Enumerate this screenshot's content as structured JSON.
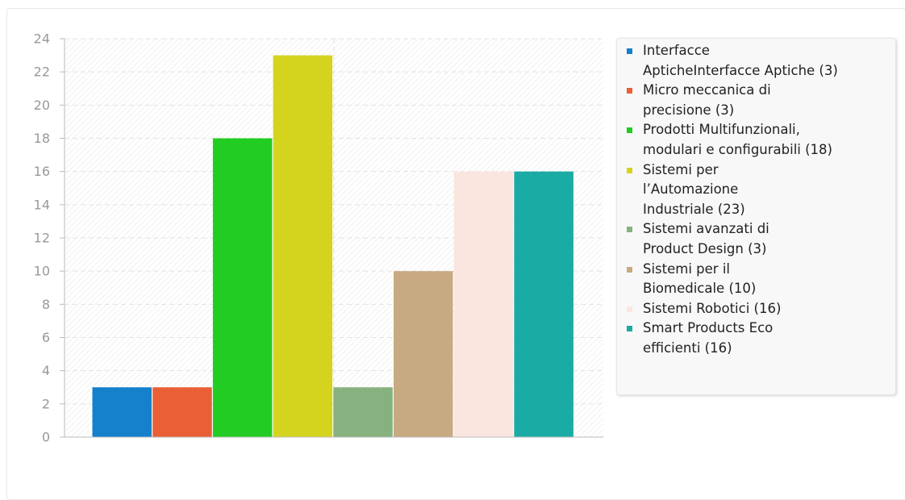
{
  "chart_data": {
    "type": "bar",
    "categories": [
      "Interfacce ApticheInterfacce Aptiche",
      "Micro meccanica di precisione",
      "Prodotti Multifunzionali, modulari e configurabili",
      "Sistemi per l’Automazione Industriale",
      "Sistemi avanzati di Product Design",
      "Sistemi per il Biomedicale",
      "Sistemi Robotici",
      "Smart Products Eco efficienti"
    ],
    "values": [
      3,
      3,
      18,
      23,
      3,
      10,
      16,
      16
    ],
    "colors": [
      "#1580cc",
      "#e95f36",
      "#22cc22",
      "#d4d41e",
      "#86b27f",
      "#c8aa82",
      "#fbe6df",
      "#19aba4"
    ],
    "ylim": [
      0,
      24
    ],
    "yticks": [
      "0",
      "2",
      "4",
      "6",
      "8",
      "10",
      "12",
      "14",
      "16",
      "18",
      "20",
      "22",
      "24"
    ],
    "grid": true,
    "legend_position": "right",
    "legend": [
      {
        "text": "Interfacce ApticheInterfacce Aptiche (3)",
        "lines": [
          "Interfacce",
          "ApticheInterfacce Aptiche (3)"
        ]
      },
      {
        "text": "Micro meccanica di precisione (3)",
        "lines": [
          "Micro meccanica di",
          "precisione (3)"
        ]
      },
      {
        "text": "Prodotti Multifunzionali, modulari e configurabili (18)",
        "lines": [
          "Prodotti Multifunzionali,",
          "modulari e configurabili (18)"
        ]
      },
      {
        "text": "Sistemi per l’Automazione Industriale (23)",
        "lines": [
          "Sistemi per",
          "l’Automazione",
          "Industriale (23)"
        ]
      },
      {
        "text": "Sistemi avanzati di Product Design (3)",
        "lines": [
          "Sistemi avanzati di",
          "Product Design (3)"
        ]
      },
      {
        "text": "Sistemi per il Biomedicale (10)",
        "lines": [
          "Sistemi per il",
          "Biomedicale (10)"
        ]
      },
      {
        "text": "Sistemi Robotici (16)",
        "lines": [
          "Sistemi Robotici (16)"
        ]
      },
      {
        "text": "Smart Products Eco efficienti (16)",
        "lines": [
          "Smart Products Eco",
          "efficienti (16)"
        ]
      }
    ]
  }
}
